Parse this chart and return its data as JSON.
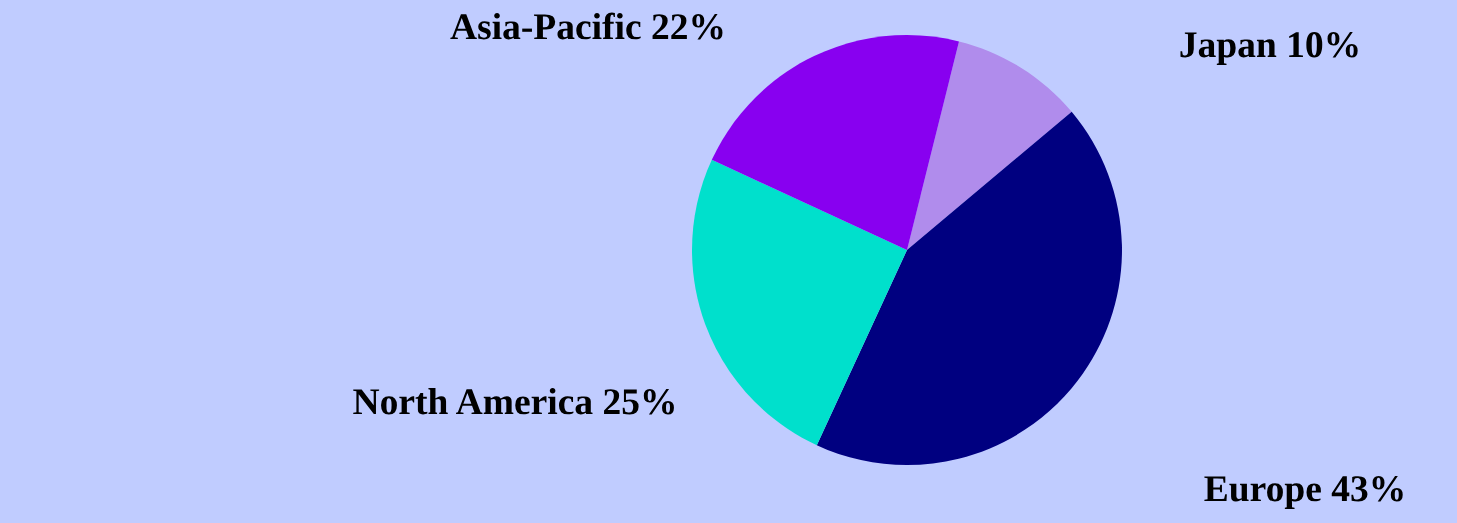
{
  "chart_data": {
    "type": "pie",
    "categories": [
      "Japan",
      "Europe",
      "North America",
      "Asia-Pacific"
    ],
    "values": [
      10,
      43,
      25,
      22
    ],
    "value_labels": [
      "10%",
      "43%",
      "25%",
      "22%"
    ],
    "colors": [
      "#b08cec",
      "#000080",
      "#00e0cc",
      "#8800f0"
    ],
    "legend": false
  }
}
